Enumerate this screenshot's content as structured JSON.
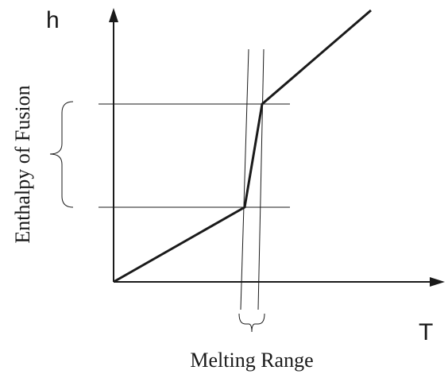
{
  "diagram": {
    "y_axis_label": "h",
    "x_axis_label": "T",
    "left_brace_label": "Enthalpy of Fusion",
    "bottom_brace_label": "Melting Range",
    "colors": {
      "line": "#1a1a1a",
      "background": "#ffffff"
    }
  }
}
